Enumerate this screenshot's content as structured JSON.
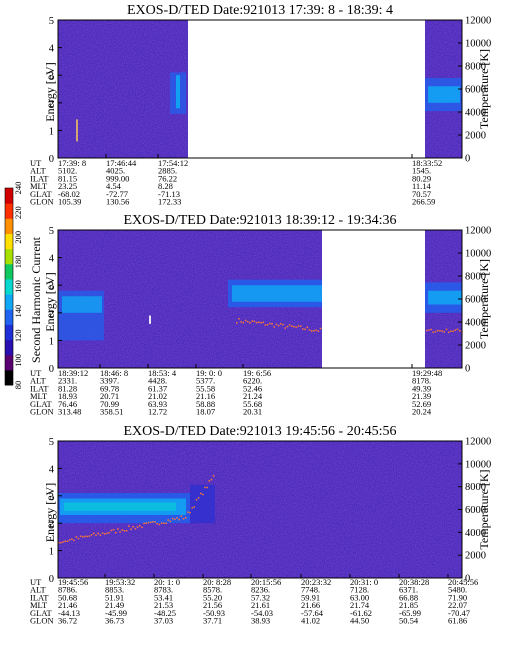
{
  "chart_data": [
    {
      "type": "heatmap",
      "title": "EXOS-D/TED   Date:921013  17:39: 8 - 18:39: 4",
      "ylabel": "Energy [eV]",
      "ylabel_right": "Temperature [K]",
      "y_ticks": [
        "0",
        "1",
        "2",
        "3",
        "4",
        "5"
      ],
      "y_right_ticks": [
        "0",
        "2000",
        "4000",
        "6000",
        "8000",
        "10000",
        "12000"
      ],
      "ylim": [
        0,
        5
      ],
      "ylim_right": [
        0,
        12000
      ],
      "data_gap": "17:55 - 18:33",
      "row_labels": [
        "UT",
        "ALT",
        "ILAT",
        "MLT",
        "GLAT",
        "GLON"
      ],
      "columns": [
        {
          "ut": "17:39: 8",
          "values": [
            "5102.",
            "81.15",
            "23.25",
            "-68.02",
            "105.39"
          ]
        },
        {
          "ut": "17:46:44",
          "values": [
            "4025.",
            "999.00",
            "4.54",
            "-72.77",
            "130.56"
          ]
        },
        {
          "ut": "17:54:12",
          "values": [
            "2885.",
            "76.22",
            "8.28",
            "-71.13",
            "172.33"
          ]
        },
        {
          "ut": "18:33:52",
          "values": [
            "1545.",
            "80.29",
            "11.14",
            "70.57",
            "266.59"
          ]
        }
      ]
    },
    {
      "type": "heatmap",
      "title": "EXOS-D/TED   Date:921013  18:39:12 - 19:34:36",
      "ylabel": "Energy [eV]",
      "ylabel_right": "Temperature [K]",
      "y_ticks": [
        "0",
        "1",
        "2",
        "3",
        "4",
        "5"
      ],
      "y_right_ticks": [
        "0",
        "2000",
        "4000",
        "6000",
        "8000",
        "10000",
        "12000"
      ],
      "ylim": [
        0,
        5
      ],
      "ylim_right": [
        0,
        12000
      ],
      "data_gap": "19:10 - 19:29",
      "row_labels": [
        "UT",
        "ALT",
        "ILAT",
        "MLT",
        "GLAT",
        "GLON"
      ],
      "columns": [
        {
          "ut": "18:39:12",
          "values": [
            "2331.",
            "81.28",
            "18.93",
            "76.46",
            "313.48"
          ]
        },
        {
          "ut": "18:46: 8",
          "values": [
            "3397.",
            "69.78",
            "20.71",
            "70.99",
            "358.51"
          ]
        },
        {
          "ut": "18:53: 4",
          "values": [
            "4428.",
            "61.37",
            "21.02",
            "63.93",
            "12.72"
          ]
        },
        {
          "ut": "19: 0: 0",
          "values": [
            "5377.",
            "55.58",
            "21.16",
            "58.88",
            "18.07"
          ]
        },
        {
          "ut": "19: 6:56",
          "values": [
            "6220.",
            "52.46",
            "21.24",
            "55.68",
            "20.31"
          ]
        },
        {
          "ut": "19:29:48",
          "values": [
            "8178.",
            "49.39",
            "21.39",
            "52.69",
            "20.24"
          ]
        }
      ]
    },
    {
      "type": "heatmap",
      "title": "EXOS-D/TED   Date:921013  19:45:56 - 20:45:56",
      "ylabel": "Energy [eV]",
      "ylabel_right": "Temperature [K]",
      "y_ticks": [
        "0",
        "1",
        "2",
        "3",
        "4",
        "5"
      ],
      "y_right_ticks": [
        "0",
        "2000",
        "4000",
        "6000",
        "8000",
        "10000",
        "12000"
      ],
      "ylim": [
        0,
        5
      ],
      "ylim_right": [
        0,
        12000
      ],
      "row_labels": [
        "UT",
        "ALT",
        "ILAT",
        "MLT",
        "GLAT",
        "GLON"
      ],
      "columns": [
        {
          "ut": "19:45:56",
          "values": [
            "8786.",
            "50.68",
            "21.46",
            "-44.13",
            "36.72"
          ]
        },
        {
          "ut": "19:53:32",
          "values": [
            "8853.",
            "51.91",
            "21.49",
            "-45.99",
            "36.73"
          ]
        },
        {
          "ut": "20: 1: 0",
          "values": [
            "8783.",
            "53.41",
            "21.53",
            "-48.25",
            "37.03"
          ]
        },
        {
          "ut": "20: 8:28",
          "values": [
            "8578.",
            "55.20",
            "21.56",
            "-50.93",
            "37.71"
          ]
        },
        {
          "ut": "20:15:56",
          "values": [
            "8236.",
            "57.32",
            "21.61",
            "-54.03",
            "38.93"
          ]
        },
        {
          "ut": "20:23:32",
          "values": [
            "7748.",
            "59.91",
            "21.66",
            "-57.64",
            "41.02"
          ]
        },
        {
          "ut": "20:31: 0",
          "values": [
            "7128.",
            "63.00",
            "21.74",
            "-61.62",
            "44.50"
          ]
        },
        {
          "ut": "20:38:28",
          "values": [
            "6371.",
            "66.88",
            "21.85",
            "-65.99",
            "50.54"
          ]
        },
        {
          "ut": "20:45:56",
          "values": [
            "5480.",
            "71.90",
            "22.07",
            "-70.47",
            "61.86"
          ]
        }
      ]
    }
  ],
  "colorbar": {
    "label": "Second Harmonic Current",
    "ticks": [
      "80",
      "100",
      "120",
      "140",
      "160",
      "180",
      "200",
      "220",
      "240"
    ],
    "colors": [
      "#000000",
      "#5a0070",
      "#2a10b0",
      "#1f2fd6",
      "#1f63f0",
      "#10a8f4",
      "#08d8d0",
      "#10c860",
      "#a8e000",
      "#ffe000",
      "#ff9000",
      "#ff3000",
      "#d00000"
    ]
  }
}
